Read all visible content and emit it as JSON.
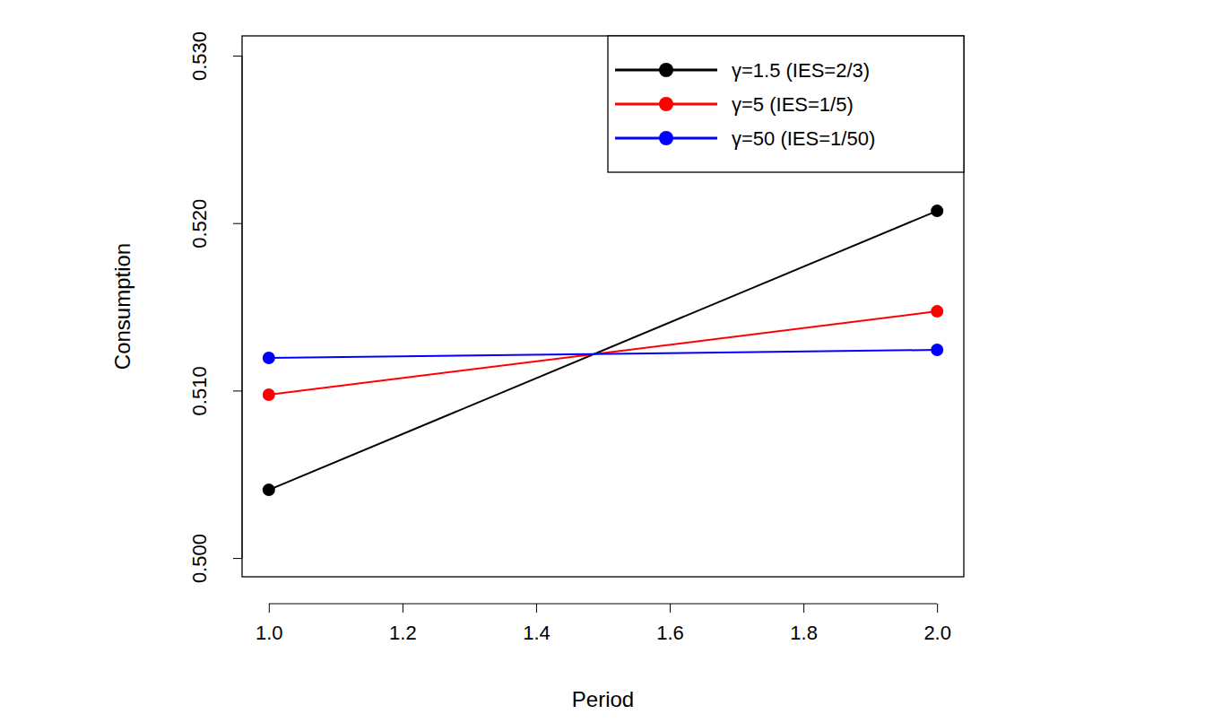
{
  "chart_data": {
    "type": "line",
    "x_label": "Period",
    "y_label": "Consumption",
    "x": [
      1,
      2
    ],
    "series": [
      {
        "name": "γ=1.5 (IES=2/3)",
        "color": "#000000",
        "marker": "circle",
        "values": [
          0.50407,
          0.52073
        ]
      },
      {
        "name": "γ=5 (IES=1/5)",
        "color": "#ff0000",
        "marker": "circle",
        "values": [
          0.50975,
          0.51473
        ]
      },
      {
        "name": "γ=50 (IES=1/50)",
        "color": "#0000ff",
        "marker": "circle",
        "values": [
          0.51195,
          0.51243
        ]
      }
    ],
    "xlim": [
      0.96,
      2.04
    ],
    "xticks": [
      {
        "value": 1,
        "label": "1.0"
      },
      {
        "value": 1.2,
        "label": "1.2"
      },
      {
        "value": 1.4,
        "label": "1.4"
      },
      {
        "value": 1.6,
        "label": "1.6"
      },
      {
        "value": 1.8,
        "label": "1.8"
      },
      {
        "value": 2,
        "label": "2.0"
      }
    ],
    "ylim": [
      0.49888,
      0.53118
    ],
    "yticks": [
      {
        "value": 0.5,
        "label": "0.500"
      },
      {
        "value": 0.51,
        "label": "0.510"
      },
      {
        "value": 0.52,
        "label": "0.520"
      },
      {
        "value": 0.53,
        "label": "0.530"
      }
    ],
    "legend": "topright",
    "grid": false
  }
}
